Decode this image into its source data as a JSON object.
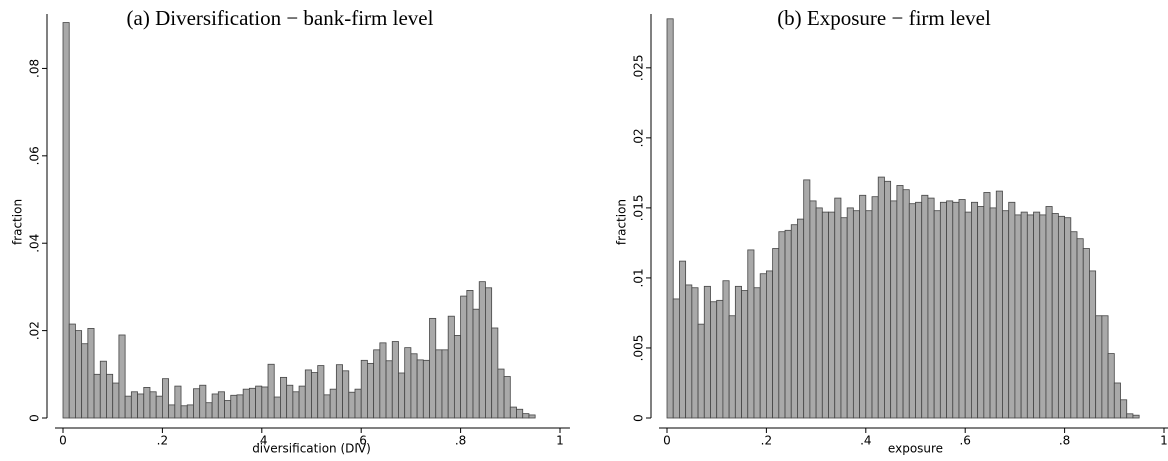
{
  "chart_data": [
    {
      "type": "histogram",
      "title": "(a) Diversification − bank-firm level",
      "xlabel": "diversification (DIV)",
      "ylabel": "fraction",
      "color": "#a9a9a9",
      "bins": [
        0,
        0.0125,
        0.025,
        0.0375,
        0.05,
        0.0625,
        0.075,
        0.0875,
        0.1,
        0.1125,
        0.125,
        0.1375,
        0.15,
        0.1625,
        0.175,
        0.1875,
        0.2,
        0.2125,
        0.225,
        0.2375,
        0.25,
        0.2625,
        0.275,
        0.2875,
        0.3,
        0.3125,
        0.325,
        0.3375,
        0.35,
        0.3625,
        0.375,
        0.3875,
        0.4,
        0.4125,
        0.425,
        0.4375,
        0.45,
        0.4625,
        0.475,
        0.4875,
        0.5,
        0.5125,
        0.525,
        0.5375,
        0.55,
        0.5625,
        0.575,
        0.5875,
        0.6,
        0.6125,
        0.625,
        0.6375,
        0.65,
        0.6625,
        0.675,
        0.6875,
        0.7,
        0.7125,
        0.725,
        0.7375,
        0.75,
        0.7625,
        0.775,
        0.7875,
        0.8,
        0.8125,
        0.825,
        0.8375,
        0.85,
        0.8625,
        0.875,
        0.8875,
        0.9,
        0.9125,
        0.925,
        0.9375,
        0.95
      ],
      "values": [
        0.0905,
        0.0215,
        0.02,
        0.017,
        0.0205,
        0.01,
        0.013,
        0.01,
        0.008,
        0.019,
        0.005,
        0.006,
        0.0055,
        0.007,
        0.006,
        0.005,
        0.009,
        0.003,
        0.0073,
        0.0028,
        0.003,
        0.0067,
        0.0075,
        0.0035,
        0.0055,
        0.006,
        0.004,
        0.0052,
        0.0053,
        0.0066,
        0.0068,
        0.0073,
        0.0071,
        0.0123,
        0.0048,
        0.0093,
        0.0075,
        0.006,
        0.0073,
        0.011,
        0.0104,
        0.012,
        0.0053,
        0.0066,
        0.0122,
        0.0108,
        0.0059,
        0.0066,
        0.0132,
        0.0125,
        0.0156,
        0.0172,
        0.0131,
        0.0175,
        0.0103,
        0.0161,
        0.0147,
        0.0133,
        0.0132,
        0.0228,
        0.0156,
        0.0156,
        0.0233,
        0.0189,
        0.0279,
        0.0292,
        0.0249,
        0.0312,
        0.0298,
        0.0206,
        0.0112,
        0.0095,
        0.0025,
        0.002,
        0.001,
        0.0007
      ],
      "xlim": [
        0,
        1.02
      ],
      "xticks": [
        0,
        {
          "value": 0.2,
          "label": ".2"
        },
        {
          "value": 0.4,
          "label": ".4"
        },
        {
          "value": 0.6,
          "label": ".6"
        },
        {
          "value": 0.8,
          "label": ".8"
        },
        1
      ],
      "ylim": [
        0,
        0.092
      ],
      "yticks": [
        0,
        {
          "value": 0.02,
          "label": ".02"
        },
        {
          "value": 0.04,
          "label": ".04"
        },
        {
          "value": 0.06,
          "label": ".06"
        },
        {
          "value": 0.08,
          "label": ".08"
        }
      ]
    },
    {
      "type": "histogram",
      "title": "(b) Exposure − firm level",
      "xlabel": "exposure",
      "ylabel": "fraction",
      "color": "#a9a9a9",
      "bins": [
        0,
        0.0125,
        0.025,
        0.0375,
        0.05,
        0.0625,
        0.075,
        0.0875,
        0.1,
        0.1125,
        0.125,
        0.1375,
        0.15,
        0.1625,
        0.175,
        0.1875,
        0.2,
        0.2125,
        0.225,
        0.2375,
        0.25,
        0.2625,
        0.275,
        0.2875,
        0.3,
        0.3125,
        0.325,
        0.3375,
        0.35,
        0.3625,
        0.375,
        0.3875,
        0.4,
        0.4125,
        0.425,
        0.4375,
        0.45,
        0.4625,
        0.475,
        0.4875,
        0.5,
        0.5125,
        0.525,
        0.5375,
        0.55,
        0.5625,
        0.575,
        0.5875,
        0.6,
        0.6125,
        0.625,
        0.6375,
        0.65,
        0.6625,
        0.675,
        0.6875,
        0.7,
        0.7125,
        0.725,
        0.7375,
        0.75,
        0.7625,
        0.775,
        0.7875,
        0.8,
        0.8125,
        0.825,
        0.8375,
        0.85,
        0.8625,
        0.875,
        0.8875,
        0.9,
        0.9125,
        0.925,
        0.9375,
        0.95
      ],
      "values": [
        0.0285,
        0.0085,
        0.0112,
        0.0095,
        0.0093,
        0.0067,
        0.0094,
        0.0083,
        0.0084,
        0.0098,
        0.0073,
        0.0094,
        0.0091,
        0.012,
        0.0093,
        0.0103,
        0.0105,
        0.0121,
        0.0133,
        0.0134,
        0.0138,
        0.0142,
        0.017,
        0.0155,
        0.015,
        0.0147,
        0.0147,
        0.0157,
        0.0143,
        0.015,
        0.0148,
        0.0159,
        0.0148,
        0.0158,
        0.0172,
        0.0169,
        0.0155,
        0.0166,
        0.0163,
        0.0153,
        0.0154,
        0.0159,
        0.0157,
        0.0148,
        0.0154,
        0.0155,
        0.0154,
        0.0156,
        0.0147,
        0.0154,
        0.0151,
        0.0161,
        0.015,
        0.0162,
        0.0148,
        0.0154,
        0.0145,
        0.0147,
        0.0145,
        0.0147,
        0.0145,
        0.0151,
        0.0146,
        0.0144,
        0.0143,
        0.0133,
        0.0128,
        0.0121,
        0.0105,
        0.0073,
        0.0073,
        0.0046,
        0.0025,
        0.0013,
        0.0003,
        0.0002
      ],
      "xlim": [
        0,
        1.02
      ],
      "xticks": [
        0,
        {
          "value": 0.2,
          "label": ".2"
        },
        {
          "value": 0.4,
          "label": ".4"
        },
        {
          "value": 0.6,
          "label": ".6"
        },
        {
          "value": 0.8,
          "label": ".8"
        },
        1
      ],
      "ylim": [
        0,
        0.0287
      ],
      "yticks": [
        0,
        {
          "value": 0.005,
          "label": ".005"
        },
        {
          "value": 0.01,
          "label": ".01"
        },
        {
          "value": 0.015,
          "label": ".015"
        },
        {
          "value": 0.02,
          "label": ".02"
        },
        {
          "value": 0.025,
          "label": ".025"
        }
      ]
    }
  ]
}
